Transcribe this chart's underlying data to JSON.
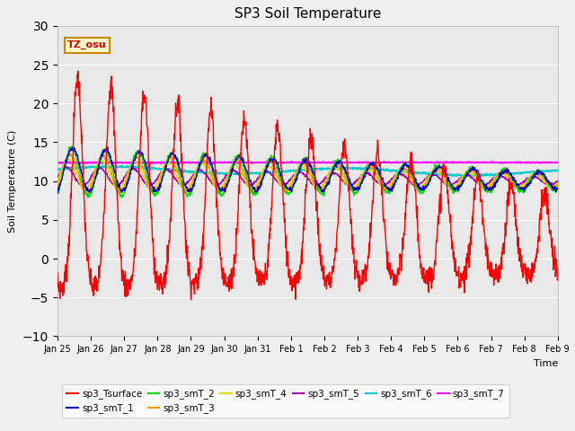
{
  "title": "SP3 Soil Temperature",
  "xlabel": "Time",
  "ylabel": "Soil Temperature (C)",
  "ylim": [
    -10,
    30
  ],
  "annotation_text": "TZ_osu",
  "annotation_bg": "#ffffcc",
  "annotation_border": "#cc8800",
  "series_colors": {
    "sp3_Tsurface": "#ff0000",
    "sp3_smT_1": "#0000cc",
    "sp3_smT_2": "#00dd00",
    "sp3_smT_3": "#ff9900",
    "sp3_smT_4": "#dddd00",
    "sp3_smT_5": "#aa00aa",
    "sp3_smT_6": "#00cccc",
    "sp3_smT_7": "#ff00ff"
  },
  "x_tick_labels": [
    "Jan 25",
    "Jan 26",
    "Jan 27",
    "Jan 28",
    "Jan 29",
    "Jan 30",
    "Jan 31",
    "Feb 1",
    "Feb 2",
    "Feb 3",
    "Feb 4",
    "Feb 5",
    "Feb 6",
    "Feb 7",
    "Feb 8",
    "Feb 9"
  ],
  "n_points": 1440,
  "days": 15
}
